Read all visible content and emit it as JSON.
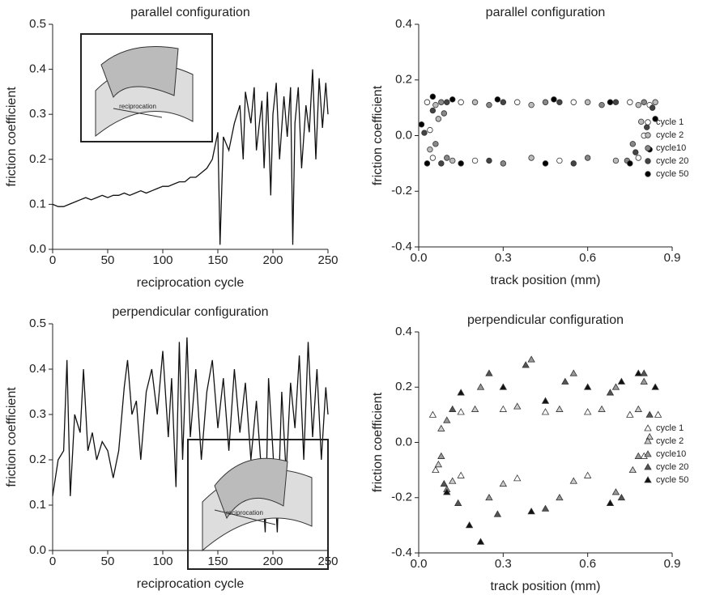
{
  "chart_data": [
    {
      "type": "line",
      "title": "parallel configuration",
      "xlabel": "reciprocation cycle",
      "ylabel": "friction coefficient",
      "inset_label": "reciprocation",
      "color": "#111111",
      "x": [
        0,
        5,
        10,
        15,
        20,
        25,
        30,
        35,
        40,
        45,
        50,
        55,
        60,
        65,
        70,
        75,
        80,
        85,
        90,
        95,
        100,
        105,
        110,
        115,
        120,
        125,
        130,
        135,
        140,
        145,
        150,
        152,
        155,
        160,
        165,
        170,
        173,
        175,
        180,
        183,
        185,
        190,
        192,
        195,
        198,
        200,
        203,
        206,
        210,
        213,
        216,
        218,
        220,
        223,
        226,
        230,
        233,
        236,
        239,
        242,
        245,
        248,
        250
      ],
      "values": [
        0.1,
        0.095,
        0.095,
        0.1,
        0.105,
        0.11,
        0.115,
        0.11,
        0.115,
        0.12,
        0.115,
        0.12,
        0.12,
        0.125,
        0.12,
        0.125,
        0.13,
        0.125,
        0.13,
        0.135,
        0.14,
        0.14,
        0.145,
        0.15,
        0.15,
        0.16,
        0.16,
        0.17,
        0.18,
        0.2,
        0.26,
        0.01,
        0.25,
        0.22,
        0.28,
        0.32,
        0.2,
        0.35,
        0.28,
        0.36,
        0.22,
        0.33,
        0.18,
        0.35,
        0.12,
        0.3,
        0.37,
        0.2,
        0.34,
        0.25,
        0.36,
        0.01,
        0.28,
        0.36,
        0.18,
        0.32,
        0.26,
        0.4,
        0.2,
        0.38,
        0.27,
        0.37,
        0.3
      ],
      "xlim": [
        0,
        250
      ],
      "ylim": [
        0,
        0.5
      ],
      "xticks": [
        0,
        50,
        100,
        150,
        200,
        250
      ],
      "yticks": [
        {
          "value": 0,
          "label": "0.0"
        },
        0.1,
        0.2,
        0.3,
        0.4,
        0.5
      ]
    },
    {
      "type": "scatter",
      "title": "parallel configuration",
      "xlabel": "track position (mm)",
      "ylabel": "friction coefficient",
      "marker": "circle",
      "legend": "lower right",
      "xlim": [
        0,
        0.9
      ],
      "ylim": [
        -0.4,
        0.4
      ],
      "xticks": [
        {
          "value": 0,
          "label": "0.0"
        },
        0.3,
        0.6,
        0.9
      ],
      "yticks": [
        -0.4,
        -0.2,
        {
          "value": 0,
          "label": "0.0"
        },
        0.2,
        0.4
      ],
      "series": [
        {
          "name": "cycle 1",
          "color": "#ffffff",
          "x": [
            0.03,
            0.15,
            0.35,
            0.55,
            0.75,
            0.82,
            0.8,
            0.78,
            0.5,
            0.2,
            0.05,
            0.04
          ],
          "y": [
            0.12,
            0.12,
            0.12,
            0.12,
            0.12,
            0.11,
            0.0,
            -0.08,
            -0.09,
            -0.09,
            -0.08,
            0.02
          ]
        },
        {
          "name": "cycle 2",
          "color": "#bbbbbb",
          "x": [
            0.06,
            0.2,
            0.4,
            0.6,
            0.78,
            0.84,
            0.79,
            0.7,
            0.4,
            0.12,
            0.04,
            0.07
          ],
          "y": [
            0.11,
            0.12,
            0.11,
            0.12,
            0.11,
            0.12,
            0.05,
            -0.09,
            -0.08,
            -0.09,
            -0.05,
            0.06
          ]
        },
        {
          "name": "cycle10",
          "color": "#888888",
          "x": [
            0.08,
            0.25,
            0.45,
            0.65,
            0.8,
            0.76,
            0.74,
            0.6,
            0.3,
            0.1,
            0.06,
            0.09
          ],
          "y": [
            0.12,
            0.11,
            0.12,
            0.11,
            0.12,
            -0.03,
            -0.09,
            -0.08,
            -0.1,
            -0.08,
            -0.03,
            0.08
          ]
        },
        {
          "name": "cycle 20",
          "color": "#444444",
          "x": [
            0.1,
            0.3,
            0.5,
            0.7,
            0.83,
            0.81,
            0.77,
            0.55,
            0.25,
            0.08,
            0.02,
            0.05
          ],
          "y": [
            0.12,
            0.12,
            0.12,
            0.12,
            0.1,
            0.03,
            -0.06,
            -0.1,
            -0.09,
            -0.1,
            0.01,
            0.09
          ]
        },
        {
          "name": "cycle 50",
          "color": "#000000",
          "x": [
            0.12,
            0.28,
            0.48,
            0.68,
            0.84,
            0.82,
            0.75,
            0.45,
            0.15,
            0.03,
            0.01,
            0.05
          ],
          "y": [
            0.13,
            0.13,
            0.13,
            0.12,
            0.06,
            -0.05,
            -0.1,
            -0.1,
            -0.1,
            -0.1,
            0.04,
            0.14
          ]
        }
      ]
    },
    {
      "type": "line",
      "title": "perpendicular configuration",
      "xlabel": "reciprocation cycle",
      "ylabel": "friction coefficient",
      "inset_label": "reciprocation",
      "color": "#111111",
      "x": [
        0,
        5,
        10,
        13,
        16,
        20,
        25,
        28,
        32,
        36,
        40,
        45,
        50,
        55,
        60,
        65,
        68,
        72,
        76,
        80,
        85,
        90,
        95,
        100,
        105,
        108,
        112,
        115,
        118,
        122,
        125,
        130,
        135,
        140,
        145,
        150,
        155,
        160,
        165,
        170,
        175,
        180,
        185,
        190,
        193,
        196,
        200,
        204,
        208,
        212,
        216,
        220,
        224,
        228,
        232,
        236,
        240,
        244,
        248,
        250
      ],
      "values": [
        0.12,
        0.2,
        0.22,
        0.42,
        0.12,
        0.3,
        0.26,
        0.4,
        0.22,
        0.26,
        0.2,
        0.24,
        0.22,
        0.16,
        0.22,
        0.36,
        0.42,
        0.3,
        0.33,
        0.2,
        0.35,
        0.4,
        0.3,
        0.44,
        0.25,
        0.38,
        0.14,
        0.46,
        0.2,
        0.47,
        0.25,
        0.4,
        0.2,
        0.35,
        0.42,
        0.27,
        0.38,
        0.22,
        0.4,
        0.26,
        0.37,
        0.2,
        0.33,
        0.16,
        0.04,
        0.38,
        0.22,
        0.04,
        0.35,
        0.17,
        0.37,
        0.27,
        0.43,
        0.2,
        0.46,
        0.25,
        0.4,
        0.2,
        0.36,
        0.3
      ],
      "xlim": [
        0,
        250
      ],
      "ylim": [
        0,
        0.5
      ],
      "xticks": [
        0,
        50,
        100,
        150,
        200,
        250
      ],
      "yticks": [
        {
          "value": 0,
          "label": "0.0"
        },
        0.1,
        0.2,
        0.3,
        0.4,
        0.5
      ]
    },
    {
      "type": "scatter",
      "title": "perpendicular configuration",
      "xlabel": "track position (mm)",
      "ylabel": "friction coefficient",
      "marker": "triangle",
      "legend": "lower right",
      "xlim": [
        0,
        0.9
      ],
      "ylim": [
        -0.4,
        0.4
      ],
      "xticks": [
        {
          "value": 0,
          "label": "0.0"
        },
        0.3,
        0.6,
        0.9
      ],
      "yticks": [
        -0.4,
        -0.2,
        {
          "value": 0,
          "label": "0.0"
        },
        0.2,
        0.4
      ],
      "series": [
        {
          "name": "cycle 1",
          "color": "#ffffff",
          "x": [
            0.05,
            0.15,
            0.3,
            0.45,
            0.6,
            0.75,
            0.85,
            0.8,
            0.6,
            0.35,
            0.15,
            0.06
          ],
          "y": [
            0.1,
            0.11,
            0.12,
            0.11,
            0.11,
            0.1,
            0.1,
            -0.05,
            -0.12,
            -0.13,
            -0.12,
            -0.1
          ]
        },
        {
          "name": "cycle 2",
          "color": "#cccccc",
          "x": [
            0.08,
            0.2,
            0.35,
            0.5,
            0.65,
            0.78,
            0.82,
            0.76,
            0.55,
            0.3,
            0.12,
            0.07
          ],
          "y": [
            0.05,
            0.12,
            0.13,
            0.12,
            0.12,
            0.12,
            0.02,
            -0.1,
            -0.14,
            -0.15,
            -0.14,
            -0.08
          ]
        },
        {
          "name": "cycle10",
          "color": "#999999",
          "x": [
            0.1,
            0.22,
            0.4,
            0.55,
            0.7,
            0.8,
            0.78,
            0.7,
            0.5,
            0.25,
            0.1,
            0.08
          ],
          "y": [
            0.08,
            0.2,
            0.3,
            0.25,
            0.2,
            0.22,
            -0.05,
            -0.18,
            -0.2,
            -0.2,
            -0.17,
            -0.05
          ]
        },
        {
          "name": "cycle 20",
          "color": "#555555",
          "x": [
            0.12,
            0.25,
            0.38,
            0.52,
            0.68,
            0.8,
            0.82,
            0.72,
            0.45,
            0.28,
            0.14,
            0.09
          ],
          "y": [
            0.12,
            0.25,
            0.28,
            0.22,
            0.18,
            0.25,
            0.1,
            -0.2,
            -0.24,
            -0.26,
            -0.22,
            -0.15
          ]
        },
        {
          "name": "cycle 50",
          "color": "#111111",
          "x": [
            0.15,
            0.3,
            0.45,
            0.6,
            0.72,
            0.78,
            0.84,
            0.68,
            0.4,
            0.22,
            0.18,
            0.1
          ],
          "y": [
            0.18,
            0.2,
            0.15,
            0.2,
            0.22,
            0.25,
            0.2,
            -0.22,
            -0.25,
            -0.36,
            -0.3,
            -0.18
          ]
        }
      ]
    }
  ]
}
